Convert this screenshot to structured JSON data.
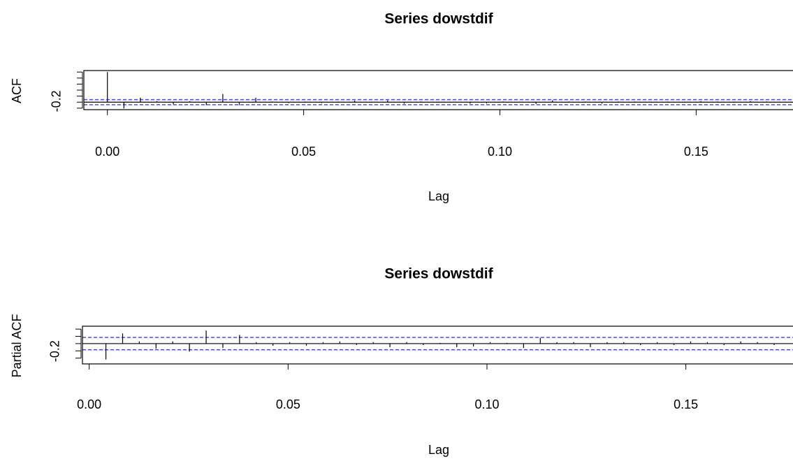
{
  "chart_data": [
    {
      "type": "stem",
      "title": "Series  dowstdif",
      "xlabel": "Lag",
      "ylabel": "ACF",
      "x": [
        0,
        0.0042,
        0.0084,
        0.0126,
        0.0168,
        0.021,
        0.0252,
        0.0294,
        0.0336,
        0.0378,
        0.042,
        0.0462,
        0.0504,
        0.0546,
        0.0588,
        0.063,
        0.0672,
        0.0714,
        0.0756,
        0.0798,
        0.084,
        0.0882,
        0.0924,
        0.0966,
        0.1008,
        0.105,
        0.1092,
        0.1134,
        0.1176,
        0.1218,
        0.126,
        0.1302,
        0.1344,
        0.1386,
        0.1428,
        0.147,
        0.1512,
        0.1554,
        0.1596,
        0.1638,
        0.168
      ],
      "values": [
        1.0,
        -0.21,
        0.15,
        0.03,
        -0.07,
        0.03,
        -0.1,
        0.27,
        -0.1,
        0.15,
        0.02,
        -0.03,
        0.02,
        -0.03,
        0.02,
        0.05,
        -0.02,
        0.06,
        -0.05,
        0.02,
        -0.02,
        0.01,
        -0.05,
        -0.04,
        0.02,
        0.01,
        -0.06,
        0.06,
        0.02,
        0.02,
        -0.05,
        0.02,
        0.02,
        -0.02,
        0.02,
        -0.02,
        0.03,
        0.02,
        -0.02,
        0.03,
        0.02
      ],
      "color": "#000000",
      "ci": 0.085,
      "ci_color": "#4a4aff",
      "xlim": [
        -0.006,
        0.172
      ],
      "xticks": [
        {
          "value": 0,
          "label": "0.00"
        },
        0.05,
        {
          "value": 0.1,
          "label": "0.10"
        },
        0.15
      ],
      "ylim": [
        -0.25,
        1.05
      ],
      "yticks": [
        -0.2
      ],
      "yticks_minor": [
        0,
        0.2,
        0.4,
        0.6,
        0.8,
        1.0
      ]
    },
    {
      "type": "stem",
      "title": "Series  dowstdif",
      "xlabel": "Lag",
      "ylabel": "Partial ACF",
      "x": [
        0.0042,
        0.0084,
        0.0126,
        0.0168,
        0.021,
        0.0252,
        0.0294,
        0.0336,
        0.0378,
        0.042,
        0.0462,
        0.0504,
        0.0546,
        0.0588,
        0.063,
        0.0672,
        0.0714,
        0.0756,
        0.0798,
        0.084,
        0.0882,
        0.0924,
        0.0966,
        0.1008,
        0.105,
        0.1092,
        0.1134,
        0.1176,
        0.1218,
        0.126,
        0.1302,
        0.1344,
        0.1386,
        0.1428,
        0.147,
        0.1512,
        0.1554,
        0.1596,
        0.1638,
        0.168,
        0.1722
      ],
      "values": [
        -0.22,
        0.14,
        0.03,
        -0.07,
        0.03,
        -0.11,
        0.18,
        -0.06,
        0.12,
        0.02,
        -0.03,
        0.02,
        -0.03,
        0.02,
        0.03,
        -0.02,
        0.02,
        -0.05,
        0.02,
        -0.02,
        0.01,
        -0.05,
        -0.04,
        0.02,
        0.01,
        -0.06,
        0.08,
        0.02,
        0.02,
        -0.05,
        0.02,
        0.02,
        -0.02,
        0.02,
        -0.02,
        0.03,
        0.02,
        -0.02,
        0.03,
        0.02,
        -0.02
      ],
      "color": "#000000",
      "ci": 0.085,
      "ci_color": "#4a4aff",
      "xlim": [
        -0.0017,
        0.1743
      ],
      "xticks": [
        {
          "value": 0,
          "label": "0.00"
        },
        0.05,
        {
          "value": 0.1,
          "label": "0.10"
        },
        0.15
      ],
      "ylim": [
        -0.28,
        0.24
      ],
      "yticks": [
        -0.2
      ],
      "yticks_minor": [
        -0.1,
        0,
        0.1,
        0.2
      ]
    }
  ]
}
